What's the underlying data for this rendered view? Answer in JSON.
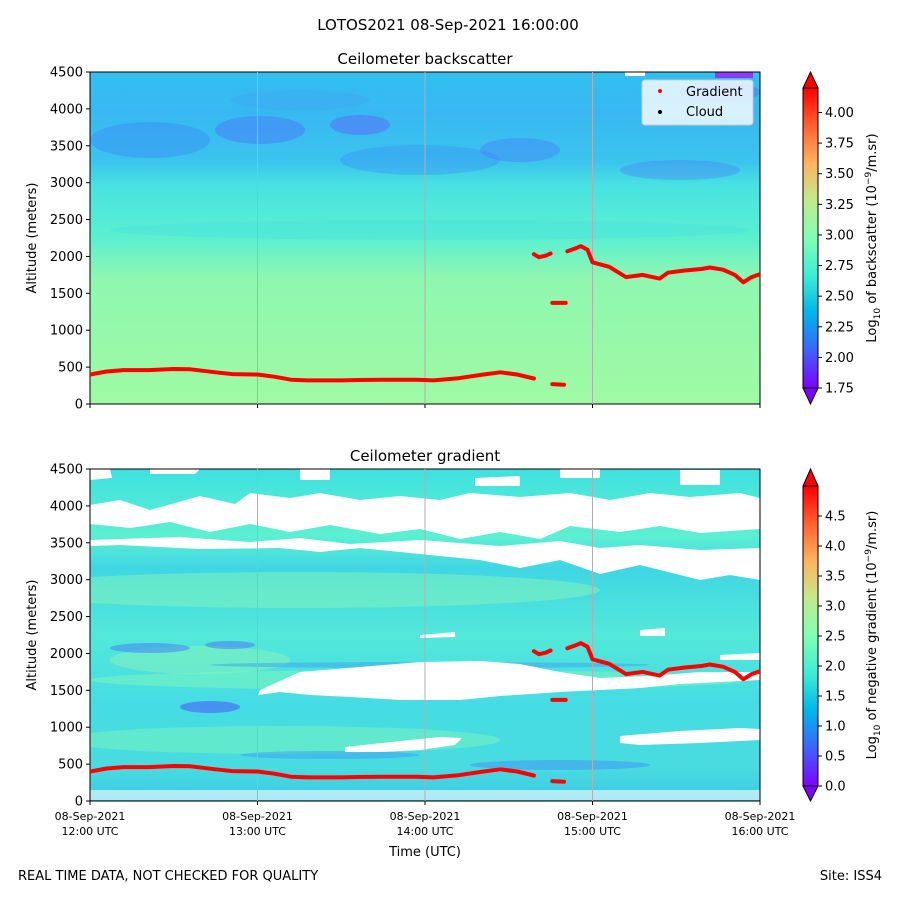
{
  "suptitle": "LOTOS2021 08-Sep-2021 16:00:00",
  "footer_left": "REAL TIME DATA, NOT CHECKED FOR QUALITY",
  "footer_right": "Site: ISS4",
  "colors": {
    "gradient_line": "#ff0000",
    "cloud_marker": "#000000",
    "gridline": "#b0b0b0"
  },
  "chart_data": [
    {
      "type": "heatmap",
      "title": "Ceilometer backscatter",
      "ylabel": "Altitude (meters)",
      "colorbar_label": "Log10 of backscatter (10^-9/m.sr)",
      "colorbar_label_parts": [
        "Log",
        "10",
        " of backscatter (10",
        "−9",
        "/m.sr)"
      ],
      "colorbar_range": [
        1.75,
        4.2
      ],
      "colorbar_ticks": [
        "1.75",
        "2.00",
        "2.25",
        "2.50",
        "2.75",
        "3.00",
        "3.25",
        "3.50",
        "3.75",
        "4.00"
      ],
      "ylim": [
        0,
        4500
      ],
      "yticks": [
        "0",
        "500",
        "1000",
        "1500",
        "2000",
        "2500",
        "3000",
        "3500",
        "4000",
        "4500"
      ],
      "xlim_hours": [
        12,
        16
      ],
      "legend": [
        {
          "label": "Gradient",
          "color": "#ff0000"
        },
        {
          "label": "Cloud",
          "color": "#000000"
        }
      ],
      "legend_loc": "upper-right",
      "approx_layers": [
        {
          "from_m": 0,
          "to_m": 1800,
          "log10_value": 2.85
        },
        {
          "from_m": 1800,
          "to_m": 3000,
          "log10_value": 2.65
        },
        {
          "from_m": 3000,
          "to_m": 4500,
          "log10_value": 2.3
        }
      ]
    },
    {
      "type": "heatmap",
      "title": "Ceilometer gradient",
      "ylabel": "Altitude (meters)",
      "xlabel": "Time (UTC)",
      "colorbar_label": "Log10 of negative gradient (10^-9/m.sr)",
      "colorbar_label_parts": [
        "Log",
        "10",
        " of negative gradient (10",
        "−9",
        "/m.sr)"
      ],
      "colorbar_range": [
        0,
        5
      ],
      "colorbar_ticks": [
        "0.0",
        "0.5",
        "1.0",
        "1.5",
        "2.0",
        "2.5",
        "3.0",
        "3.5",
        "4.0",
        "4.5"
      ],
      "ylim": [
        0,
        4500
      ],
      "yticks": [
        "0",
        "500",
        "1000",
        "1500",
        "2000",
        "2500",
        "3000",
        "3500",
        "4000",
        "4500"
      ],
      "xlim_hours": [
        12,
        16
      ],
      "xtick_lines": [
        [
          "08-Sep-2021",
          "12:00 UTC"
        ],
        [
          "08-Sep-2021",
          "13:00 UTC"
        ],
        [
          "08-Sep-2021",
          "14:00 UTC"
        ],
        [
          "08-Sep-2021",
          "15:00 UTC"
        ],
        [
          "08-Sep-2021",
          "16:00 UTC"
        ]
      ],
      "blank_regions": [
        {
          "t": [
            12.0,
            16.0
          ],
          "alt": [
            3550,
            4450
          ],
          "note": "patchy missing data"
        },
        {
          "t": [
            13.35,
            15.1
          ],
          "alt": [
            1650,
            1950
          ]
        },
        {
          "t": [
            13.0,
            16.0
          ],
          "alt": [
            1400,
            1600
          ]
        },
        {
          "t": [
            13.8,
            14.4
          ],
          "alt": [
            650,
            900
          ]
        },
        {
          "t": [
            15.15,
            16.0
          ],
          "alt": [
            750,
            950
          ]
        }
      ]
    }
  ],
  "gradient_series": {
    "name": "Gradient",
    "segments": [
      [
        [
          12.0,
          400
        ],
        [
          12.1,
          440
        ],
        [
          12.2,
          460
        ],
        [
          12.35,
          460
        ],
        [
          12.5,
          475
        ],
        [
          12.6,
          470
        ],
        [
          12.75,
          430
        ],
        [
          12.85,
          405
        ],
        [
          13.0,
          400
        ],
        [
          13.1,
          370
        ],
        [
          13.2,
          330
        ],
        [
          13.3,
          320
        ],
        [
          13.5,
          320
        ],
        [
          13.6,
          325
        ],
        [
          13.75,
          330
        ],
        [
          13.95,
          330
        ],
        [
          14.05,
          320
        ],
        [
          14.2,
          350
        ],
        [
          14.35,
          400
        ],
        [
          14.45,
          430
        ],
        [
          14.55,
          400
        ],
        [
          14.65,
          345
        ]
      ],
      [
        [
          14.65,
          2030
        ],
        [
          14.68,
          1990
        ],
        [
          14.72,
          2010
        ],
        [
          14.75,
          2040
        ]
      ],
      [
        [
          14.76,
          1370
        ],
        [
          14.84,
          1370
        ]
      ],
      [
        [
          14.76,
          270
        ],
        [
          14.83,
          260
        ]
      ],
      [
        [
          14.85,
          2070
        ],
        [
          14.9,
          2110
        ],
        [
          14.93,
          2140
        ],
        [
          14.97,
          2090
        ],
        [
          15.0,
          1920
        ],
        [
          15.1,
          1860
        ],
        [
          15.2,
          1720
        ],
        [
          15.3,
          1750
        ],
        [
          15.4,
          1700
        ],
        [
          15.45,
          1780
        ],
        [
          15.55,
          1810
        ],
        [
          15.65,
          1830
        ],
        [
          15.7,
          1850
        ],
        [
          15.78,
          1820
        ],
        [
          15.85,
          1750
        ],
        [
          15.9,
          1650
        ],
        [
          15.95,
          1720
        ],
        [
          16.0,
          1760
        ]
      ]
    ]
  }
}
